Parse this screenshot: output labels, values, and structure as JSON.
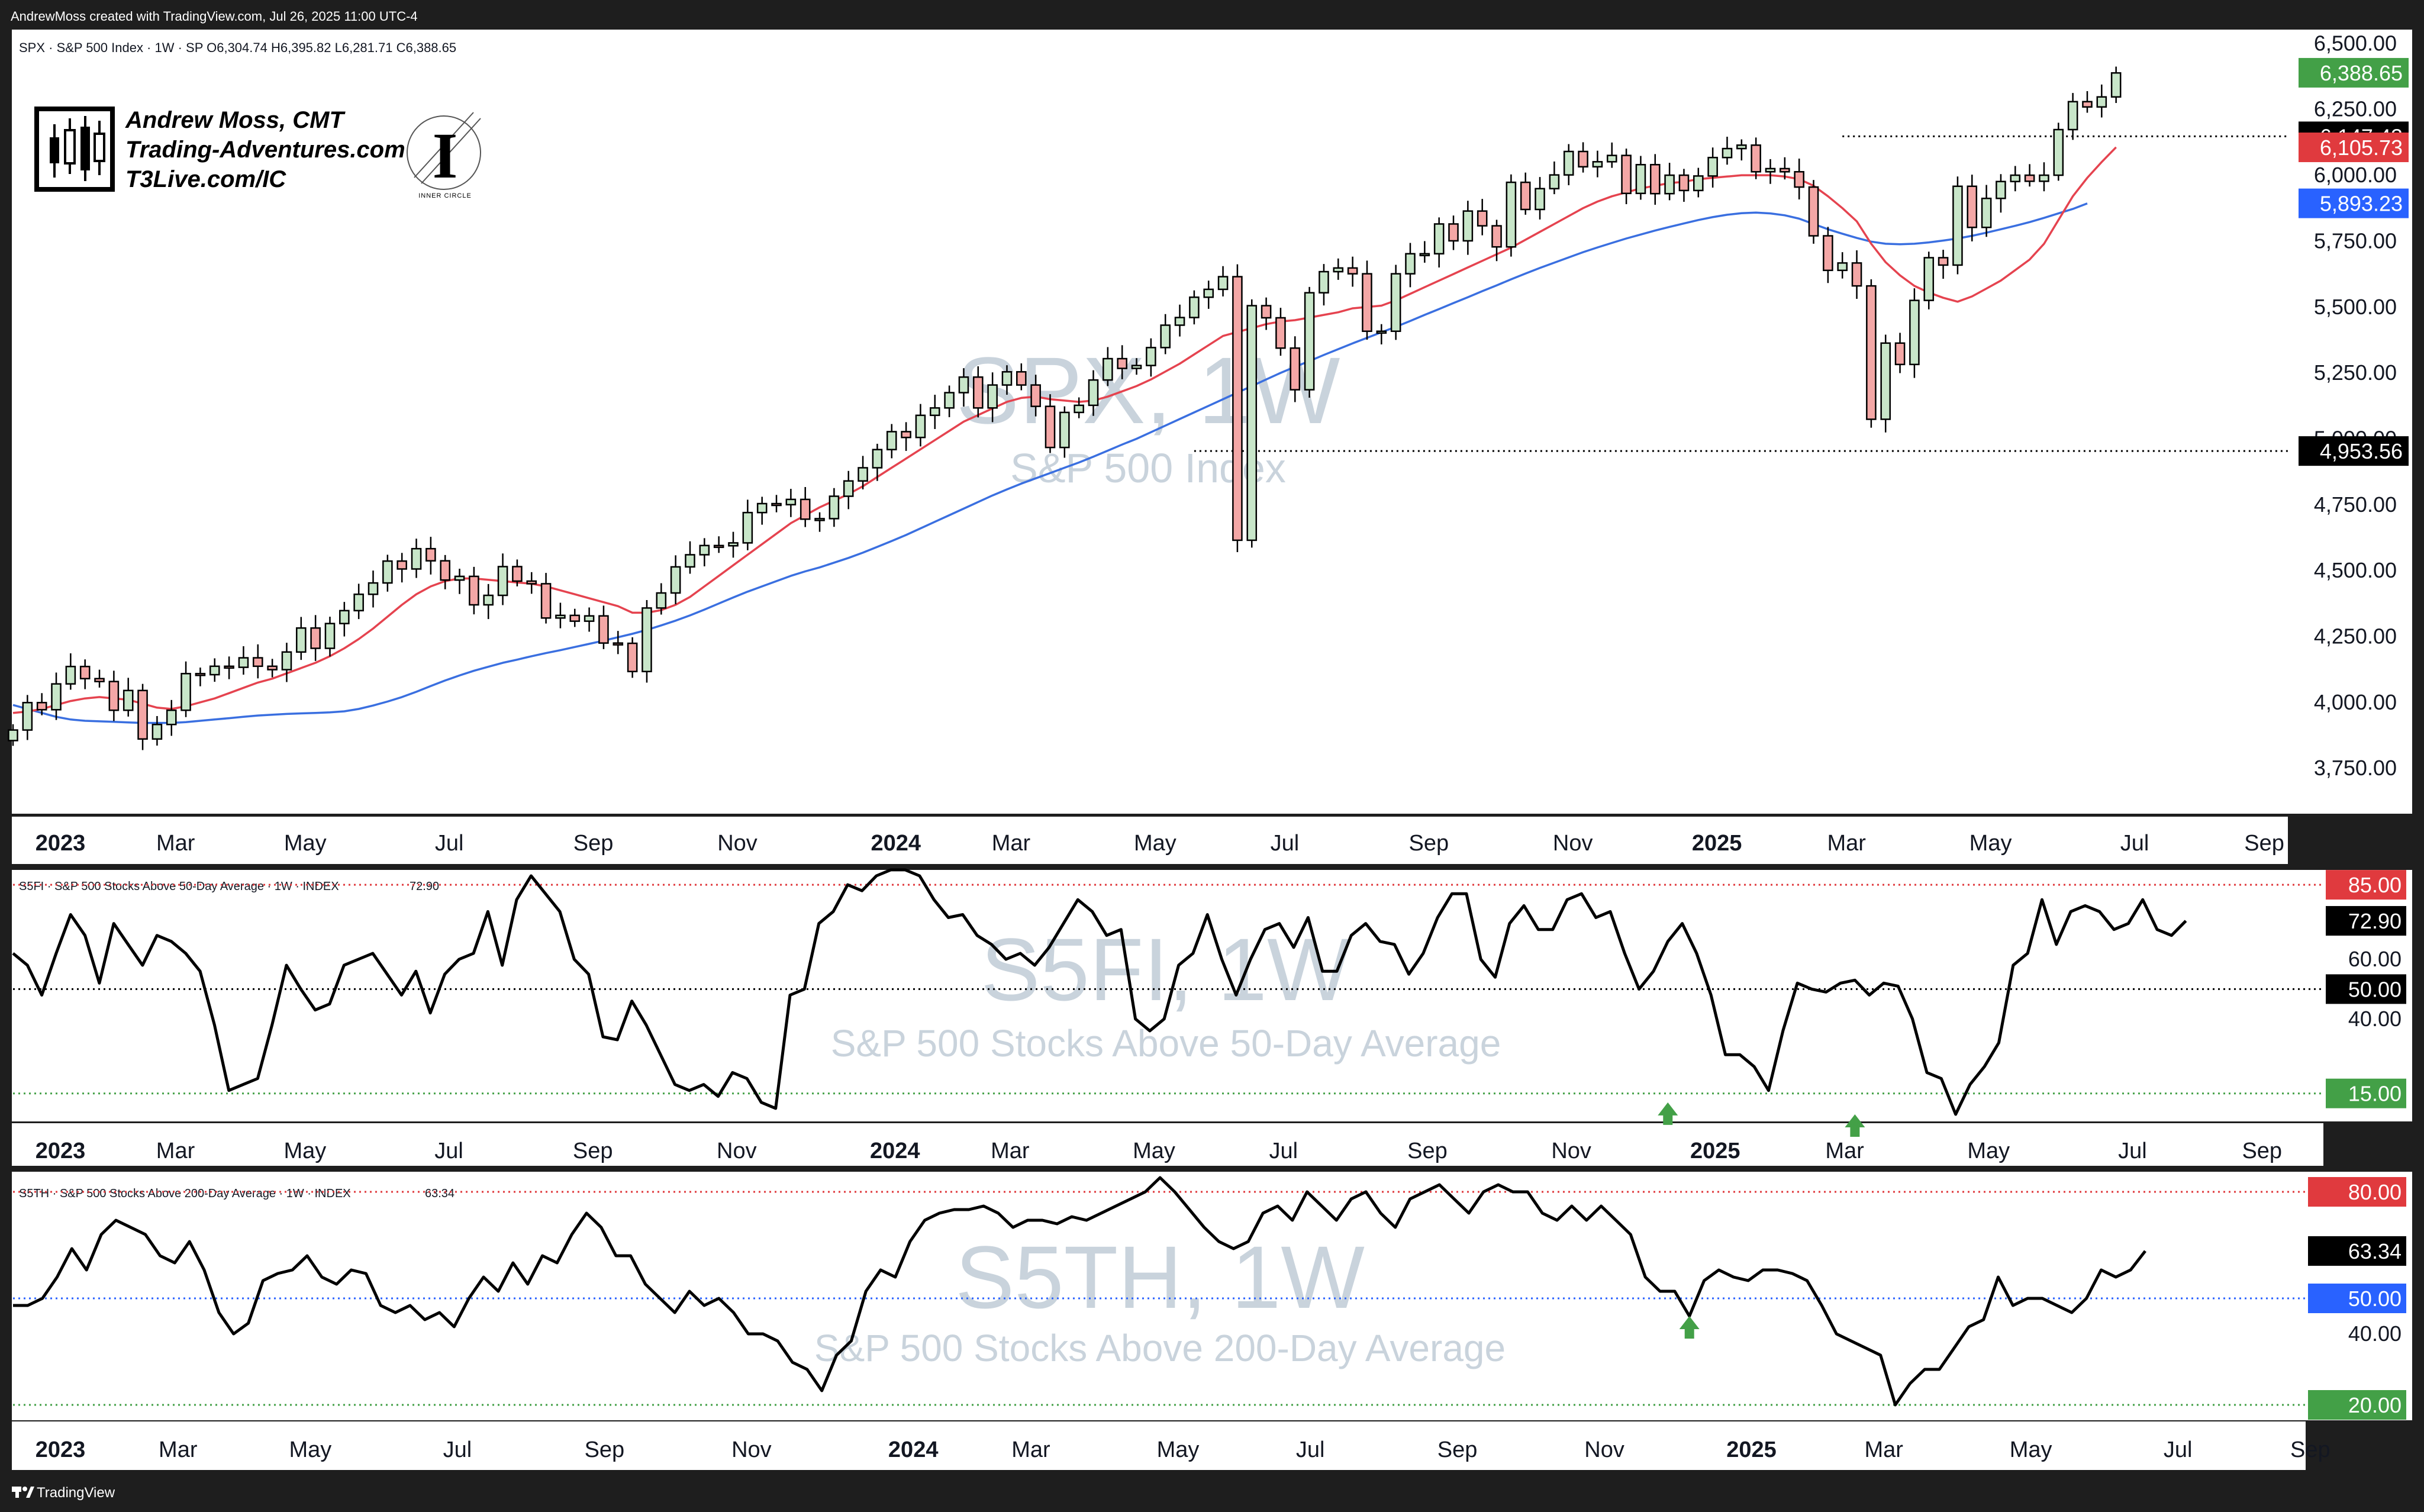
{
  "header": {
    "attribution": "AndrewMoss created with TradingView.com, Jul 26, 2025 11:00 UTC-4"
  },
  "footer": {
    "brand": "TradingView"
  },
  "branding": {
    "name": "Andrew Moss, CMT",
    "site": "Trading-Adventures.com",
    "link": "T3Live.com/IC",
    "logo_caption": "INNER CIRCLE",
    "logo_letter": "I"
  },
  "colors": {
    "up_candle": "#c8e6c9",
    "down_candle": "#f4a7a6",
    "sma_fast": "#e5434f",
    "sma_slow": "#3a6fe0",
    "line": "#000000",
    "green_label": "#43a047",
    "red_label": "#e03a3e",
    "blue_label": "#2962ff",
    "black_label": "#000000",
    "watermark": "#c9d3dc"
  },
  "chart_data": [
    {
      "type": "candlestick",
      "symbol_line": "SPX · S&P 500 Index · 1W · SP  O6,304.74  H6,395.82  L6,281.71  C6,388.65",
      "watermark": "SPX, 1W",
      "watermark_sub": "S&P 500 Index",
      "ylim": [
        3600,
        6530
      ],
      "y_ticks": [
        "6,500.00",
        "6,250.00",
        "6,000.00",
        "5,750.00",
        "5,500.00",
        "5,250.00",
        "5,000.00",
        "4,750.00",
        "4,500.00",
        "4,250.00",
        "4,000.00",
        "3,750.00"
      ],
      "x_labels": [
        "2023",
        "Mar",
        "May",
        "Jul",
        "Sep",
        "Nov",
        "2024",
        "Mar",
        "May",
        "Jul",
        "Sep",
        "Nov",
        "2025",
        "Mar",
        "May",
        "Jul",
        "Sep"
      ],
      "x_label_weeks": [
        0,
        8,
        17,
        27,
        37,
        47,
        58,
        66,
        76,
        85,
        95,
        105,
        115,
        124,
        134,
        144,
        153
      ],
      "price_labels": [
        {
          "text": "6,388.65",
          "value": 6388.65,
          "color": "#43a047"
        },
        {
          "text": "6,147.43",
          "value": 6147.43,
          "color": "#000000"
        },
        {
          "text": "6,105.73",
          "value": 6105.73,
          "color": "#e03a3e"
        },
        {
          "text": "5,893.23",
          "value": 5893.23,
          "color": "#2962ff"
        },
        {
          "text": "4,953.56",
          "value": 4953.56,
          "color": "#000000"
        }
      ],
      "horizontal_levels": [
        {
          "value": 6147.43,
          "start_week": 127
        },
        {
          "value": 4953.56,
          "start_week": 82
        }
      ],
      "close": [
        3895,
        3999,
        3972,
        4070,
        4136,
        4090,
        4079,
        3970,
        4045,
        3861,
        3916,
        3970,
        4109,
        4105,
        4137,
        4133,
        4169,
        4137,
        4124,
        4191,
        4282,
        4205,
        4299,
        4348,
        4410,
        4453,
        4536,
        4506,
        4583,
        4537,
        4464,
        4478,
        4370,
        4406,
        4515,
        4460,
        4450,
        4320,
        4330,
        4308,
        4328,
        4225,
        4224,
        4117,
        4358,
        4415,
        4514,
        4560,
        4595,
        4594,
        4605,
        4720,
        4754,
        4750,
        4770,
        4695,
        4697,
        4782,
        4840,
        4890,
        4959,
        5027,
        5005,
        5089,
        5117,
        5175,
        5234,
        5117,
        5204,
        5254,
        5204,
        5123,
        4967,
        5100,
        5127,
        5223,
        5304,
        5267,
        5278,
        5346,
        5431,
        5460,
        5537,
        5567,
        5615,
        4615,
        5505,
        5459,
        5344,
        5186,
        5554,
        5634,
        5648,
        5626,
        5408,
        5408,
        5626,
        5702,
        5702,
        5815,
        5751,
        5864,
        5808,
        5728,
        5973,
        5870,
        5949,
        6001,
        6090,
        6032,
        6051,
        6075,
        5931,
        6040,
        5930,
        6000,
        5942,
        5997,
        6067,
        6101,
        6114,
        6013,
        6025,
        6013,
        5955,
        5770,
        5639,
        5667,
        5580,
        5074,
        5363,
        5282,
        5525,
        5687,
        5659,
        5958,
        5802,
        5912,
        5976,
        6000,
        5977,
        6000,
        6173,
        6279,
        6259,
        6297,
        6388
      ],
      "sma_fast": [
        3960,
        3965,
        3975,
        3990,
        4005,
        4015,
        4020,
        4015,
        4010,
        3995,
        3980,
        3975,
        3985,
        4000,
        4015,
        4035,
        4055,
        4075,
        4090,
        4110,
        4130,
        4150,
        4175,
        4205,
        4240,
        4280,
        4325,
        4370,
        4410,
        4440,
        4460,
        4470,
        4470,
        4465,
        4460,
        4455,
        4450,
        4440,
        4425,
        4410,
        4395,
        4380,
        4365,
        4340,
        4340,
        4350,
        4370,
        4400,
        4440,
        4480,
        4520,
        4560,
        4600,
        4640,
        4680,
        4710,
        4740,
        4765,
        4790,
        4820,
        4855,
        4890,
        4925,
        4960,
        4995,
        5030,
        5065,
        5090,
        5115,
        5140,
        5155,
        5160,
        5150,
        5145,
        5140,
        5145,
        5160,
        5180,
        5200,
        5225,
        5255,
        5285,
        5320,
        5355,
        5390,
        5405,
        5420,
        5435,
        5445,
        5450,
        5460,
        5470,
        5480,
        5495,
        5500,
        5505,
        5525,
        5550,
        5575,
        5600,
        5625,
        5650,
        5675,
        5700,
        5725,
        5755,
        5785,
        5815,
        5845,
        5875,
        5900,
        5920,
        5935,
        5950,
        5960,
        5970,
        5975,
        5985,
        5990,
        5995,
        6000,
        6000,
        6000,
        5995,
        5985,
        5960,
        5920,
        5875,
        5825,
        5740,
        5670,
        5620,
        5580,
        5555,
        5535,
        5520,
        5540,
        5570,
        5600,
        5640,
        5680,
        5740,
        5830,
        5920,
        5990,
        6050,
        6106
      ],
      "sma_slow": [
        3990,
        3975,
        3960,
        3945,
        3935,
        3930,
        3928,
        3926,
        3924,
        3922,
        3922,
        3922,
        3925,
        3930,
        3935,
        3940,
        3945,
        3950,
        3953,
        3956,
        3958,
        3960,
        3962,
        3966,
        3975,
        3988,
        4003,
        4020,
        4040,
        4062,
        4083,
        4102,
        4120,
        4135,
        4150,
        4162,
        4175,
        4187,
        4198,
        4210,
        4222,
        4234,
        4247,
        4260,
        4275,
        4292,
        4310,
        4330,
        4352,
        4375,
        4398,
        4420,
        4440,
        4460,
        4480,
        4497,
        4512,
        4530,
        4548,
        4568,
        4590,
        4612,
        4635,
        4660,
        4685,
        4710,
        4735,
        4760,
        4785,
        4808,
        4830,
        4850,
        4870,
        4890,
        4910,
        4932,
        4955,
        4978,
        5000,
        5025,
        5050,
        5075,
        5100,
        5125,
        5150,
        5175,
        5200,
        5225,
        5250,
        5273,
        5295,
        5318,
        5340,
        5362,
        5383,
        5404,
        5425,
        5447,
        5470,
        5492,
        5515,
        5537,
        5560,
        5582,
        5605,
        5627,
        5648,
        5668,
        5688,
        5708,
        5726,
        5743,
        5760,
        5775,
        5790,
        5804,
        5817,
        5830,
        5841,
        5850,
        5856,
        5858,
        5855,
        5848,
        5835,
        5815,
        5795,
        5778,
        5762,
        5748,
        5740,
        5738,
        5740,
        5745,
        5752,
        5760,
        5770,
        5782,
        5795,
        5808,
        5822,
        5838,
        5855,
        5872,
        5893
      ]
    },
    {
      "type": "line",
      "symbol_line": "S5FI · S&P 500 Stocks Above 50-Day Average · 1W · INDEX",
      "last_value_text": "72.90",
      "watermark": "S5FI, 1W",
      "watermark_sub": "S&P 500 Stocks Above 50-Day Average",
      "ylim": [
        7,
        88
      ],
      "y_ticks": [
        "60.00",
        "40.00"
      ],
      "x_labels": [
        "2023",
        "Mar",
        "May",
        "Jul",
        "Sep",
        "Nov",
        "2024",
        "Mar",
        "May",
        "Jul",
        "Sep",
        "Nov",
        "2025",
        "Mar",
        "May",
        "Jul",
        "Sep"
      ],
      "x_label_weeks": [
        0,
        8,
        17,
        27,
        37,
        47,
        58,
        66,
        76,
        85,
        95,
        105,
        115,
        124,
        134,
        144,
        153
      ],
      "levels": [
        {
          "text": "85.00",
          "value": 85,
          "color": "#e03a3e",
          "style": "dotted"
        },
        {
          "text": "50.00",
          "value": 50,
          "color": "#000000",
          "style": "dotted"
        },
        {
          "text": "15.00",
          "value": 15,
          "color": "#43a047",
          "style": "dotted"
        }
      ],
      "last_value_label": {
        "text": "72.90",
        "value": 72.9,
        "color": "#000000"
      },
      "signal_arrows": [
        {
          "week": 115,
          "value": 12
        },
        {
          "week": 128,
          "value": 8
        }
      ],
      "values": [
        62,
        58,
        48,
        62,
        75,
        68,
        52,
        72,
        65,
        58,
        68,
        66,
        62,
        56,
        38,
        16,
        18,
        20,
        38,
        58,
        50,
        43,
        45,
        58,
        60,
        62,
        55,
        48,
        56,
        42,
        55,
        60,
        62,
        76,
        58,
        80,
        88,
        82,
        76,
        60,
        55,
        34,
        33,
        46,
        38,
        28,
        18,
        16,
        18,
        14,
        22,
        20,
        12,
        10,
        48,
        50,
        72,
        76,
        85,
        83,
        88,
        90,
        90,
        88,
        80,
        74,
        75,
        68,
        65,
        60,
        62,
        58,
        64,
        72,
        80,
        76,
        68,
        70,
        40,
        36,
        40,
        58,
        62,
        75,
        60,
        48,
        60,
        70,
        72,
        64,
        74,
        56,
        56,
        68,
        72,
        66,
        65,
        55,
        62,
        74,
        82,
        82,
        60,
        54,
        72,
        78,
        70,
        70,
        80,
        82,
        74,
        76,
        62,
        50,
        56,
        66,
        72,
        62,
        48,
        28,
        28,
        24,
        16,
        36,
        52,
        50,
        49,
        52,
        53,
        48,
        52,
        51,
        40,
        22,
        20,
        8,
        18,
        24,
        32,
        58,
        62,
        80,
        65,
        76,
        78,
        76,
        70,
        72,
        80,
        70,
        68,
        72.9
      ]
    },
    {
      "type": "line",
      "symbol_line": "S5TH · S&P 500 Stocks Above 200-Day Average · 1W · INDEX",
      "last_value_text": "63.34",
      "watermark": "S5TH, 1W",
      "watermark_sub": "S&P 500 Stocks Above 200-Day Average",
      "ylim": [
        17,
        84
      ],
      "y_ticks": [
        "40.00"
      ],
      "x_labels": [
        "2023",
        "Mar",
        "May",
        "Jul",
        "Sep",
        "Nov",
        "2024",
        "Mar",
        "May",
        "Jul",
        "Sep",
        "Nov",
        "2025",
        "Mar",
        "May",
        "Jul",
        "Sep"
      ],
      "x_label_weeks": [
        0,
        8,
        17,
        27,
        37,
        47,
        58,
        66,
        76,
        85,
        95,
        105,
        115,
        124,
        134,
        144,
        153
      ],
      "levels": [
        {
          "text": "80.00",
          "value": 80,
          "color": "#e03a3e",
          "style": "dotted"
        },
        {
          "text": "50.00",
          "value": 50,
          "color": "#2962ff",
          "style": "dotted"
        },
        {
          "text": "20.00",
          "value": 20,
          "color": "#43a047",
          "style": "dotted"
        }
      ],
      "last_value_label": {
        "text": "63.34",
        "value": 63.34,
        "color": "#000000"
      },
      "signal_arrows": [
        {
          "week": 114,
          "value": 45
        }
      ],
      "values": [
        48,
        48,
        50,
        56,
        64,
        58,
        68,
        72,
        70,
        68,
        62,
        60,
        66,
        58,
        46,
        40,
        43,
        55,
        57,
        58,
        62,
        56,
        54,
        58,
        57,
        48,
        46,
        48,
        44,
        46,
        42,
        50,
        56,
        52,
        60,
        54,
        62,
        60,
        68,
        74,
        70,
        62,
        62,
        54,
        50,
        46,
        52,
        48,
        50,
        46,
        40,
        40,
        38,
        32,
        30,
        24,
        34,
        38,
        52,
        58,
        56,
        66,
        72,
        74,
        75,
        75,
        76,
        74,
        70,
        72,
        72,
        71,
        73,
        72,
        74,
        76,
        78,
        80,
        84,
        80,
        75,
        70,
        66,
        64,
        66,
        74,
        76,
        72,
        80,
        76,
        72,
        78,
        80,
        74,
        70,
        78,
        80,
        82,
        78,
        74,
        80,
        82,
        80,
        80,
        74,
        72,
        76,
        72,
        76,
        72,
        68,
        56,
        52,
        52,
        45,
        55,
        58,
        56,
        55,
        58,
        58,
        57,
        55,
        48,
        40,
        38,
        36,
        34,
        20,
        26,
        30,
        30,
        36,
        42,
        44,
        56,
        48,
        50,
        50,
        48,
        46,
        50,
        58,
        56,
        58,
        63.34
      ]
    }
  ]
}
